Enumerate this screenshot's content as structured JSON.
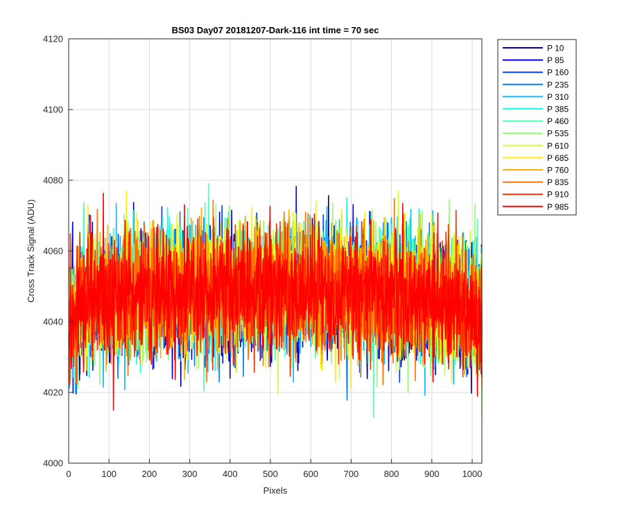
{
  "chart_data": {
    "type": "line",
    "title": "BS03 Day07 20181207-Dark-116 int time = 70 sec",
    "xlabel": "Pixels",
    "ylabel": "Cross Track Signal (ADU)",
    "xlim": [
      0,
      1024
    ],
    "ylim": [
      4000,
      4120
    ],
    "xticks": [
      "0",
      "100",
      "200",
      "300",
      "400",
      "500",
      "600",
      "700",
      "800",
      "900",
      "1000"
    ],
    "yticks": [
      "4000",
      "4020",
      "4040",
      "4060",
      "4080",
      "4100",
      "4120"
    ],
    "grid": true,
    "legend_position": "outside-top-right",
    "series": [
      {
        "name": "P 10",
        "color": "#00008f",
        "mean": 4046
      },
      {
        "name": "P 85",
        "color": "#0000df",
        "mean": 4046
      },
      {
        "name": "P 160",
        "color": "#0040ff",
        "mean": 4046
      },
      {
        "name": "P 235",
        "color": "#0080ff",
        "mean": 4046
      },
      {
        "name": "P 310",
        "color": "#00bfff",
        "mean": 4047
      },
      {
        "name": "P 385",
        "color": "#10ffef",
        "mean": 4047
      },
      {
        "name": "P 460",
        "color": "#50ffaf",
        "mean": 4047
      },
      {
        "name": "P 535",
        "color": "#8fff70",
        "mean": 4047
      },
      {
        "name": "P 610",
        "color": "#cfff30",
        "mean": 4047
      },
      {
        "name": "P 685",
        "color": "#ffef00",
        "mean": 4047
      },
      {
        "name": "P 760",
        "color": "#ffaf00",
        "mean": 4046
      },
      {
        "name": "P 835",
        "color": "#ff7000",
        "mean": 4046
      },
      {
        "name": "P 910",
        "color": "#ff3000",
        "mean": 4046
      },
      {
        "name": "P 985",
        "color": "#ff0000",
        "mean": 4046
      }
    ]
  }
}
